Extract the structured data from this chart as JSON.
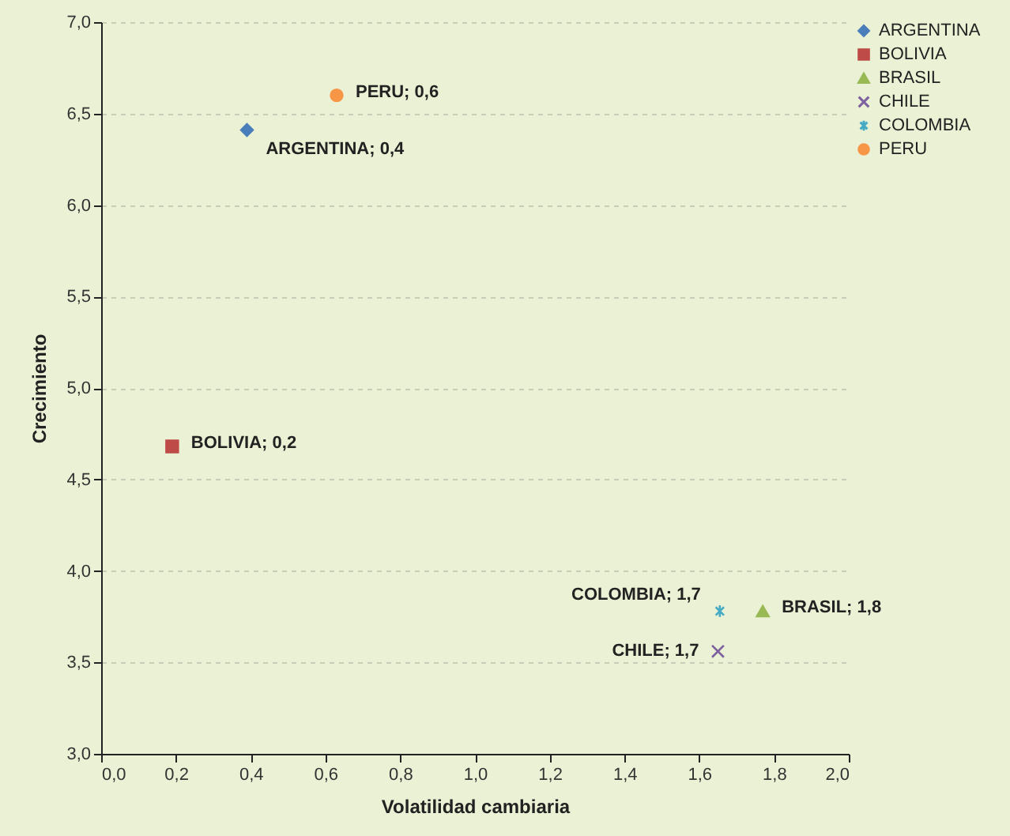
{
  "chart_data": {
    "type": "scatter",
    "xlabel": "Volatilidad cambiaria",
    "ylabel": "Crecimiento",
    "xlim": [
      0,
      2
    ],
    "xticks": [
      {
        "value": 0,
        "label": "0,0"
      },
      {
        "value": 0.2,
        "label": "0,2"
      },
      {
        "value": 0.4,
        "label": "0,4"
      },
      {
        "value": 0.6,
        "label": "0,6"
      },
      {
        "value": 0.8,
        "label": "0,8"
      },
      {
        "value": 1,
        "label": "1,0"
      },
      {
        "value": 1.2,
        "label": "1,2"
      },
      {
        "value": 1.4,
        "label": "1,4"
      },
      {
        "value": 1.6,
        "label": "1,6"
      },
      {
        "value": 1.8,
        "label": "1,8"
      },
      {
        "value": 2,
        "label": "2,0"
      }
    ],
    "ylim": [
      3,
      7
    ],
    "yticks": [
      {
        "value": 3,
        "label": "3,0"
      },
      {
        "value": 3.5,
        "label": "3,5"
      },
      {
        "value": 4,
        "label": "4,0"
      },
      {
        "value": 4.5,
        "label": "4,5"
      },
      {
        "value": 5,
        "label": "5,0"
      },
      {
        "value": 5.5,
        "label": "5,5"
      },
      {
        "value": 6,
        "label": "6,0"
      },
      {
        "value": 6.5,
        "label": "6,5"
      },
      {
        "value": 7,
        "label": "7,0"
      }
    ],
    "grid": "y",
    "legend": "right",
    "series": [
      {
        "name": "ARGENTINA",
        "color": "#4a7ebb",
        "marker": "diamond",
        "x": [
          0.39
        ],
        "values": [
          6.41
        ]
      },
      {
        "name": "BOLIVIA",
        "color": "#be4b48",
        "marker": "square",
        "x": [
          0.19
        ],
        "values": [
          4.68
        ]
      },
      {
        "name": "BRASIL",
        "color": "#98b954",
        "marker": "triangle",
        "x": [
          1.77
        ],
        "values": [
          3.78
        ]
      },
      {
        "name": "CHILE",
        "color": "#7d60a0",
        "marker": "cross",
        "x": [
          1.65
        ],
        "values": [
          3.56
        ]
      },
      {
        "name": "COLOMBIA",
        "color": "#46aac5",
        "x": [
          1.655
        ],
        "values": [
          3.78
        ]
      },
      {
        "name": "PERU",
        "color": "#f79646",
        "marker": "circle",
        "x": [
          0.63
        ],
        "values": [
          6.6
        ]
      }
    ],
    "annotations": [
      {
        "text": "ARGENTINA; 0,4",
        "x": 0.39,
        "y": 6.41
      },
      {
        "text": "BOLIVIA; 0,2",
        "x": 0.19,
        "y": 4.68
      },
      {
        "text": "BRASIL; 1,8",
        "x": 1.77,
        "y": 3.78
      },
      {
        "text": "CHILE; 1,7",
        "x": 1.65,
        "y": 3.56
      },
      {
        "text": "COLOMBIA; 1,7",
        "x": 1.655,
        "y": 3.78
      },
      {
        "text": "PERU; 0,6",
        "x": 0.63,
        "y": 6.6
      }
    ]
  }
}
